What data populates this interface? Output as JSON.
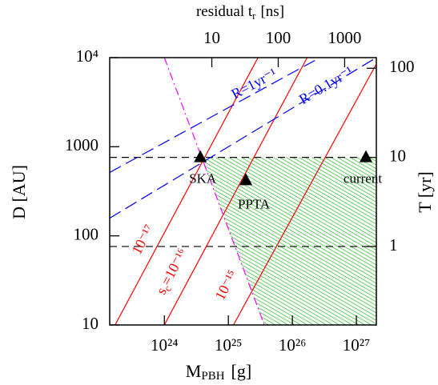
{
  "chart_data": {
    "type": "line",
    "xscale": "log",
    "yscale": "log",
    "xlabel": {
      "text": "M",
      "sub": "PBH",
      "unit": "[g]"
    },
    "ylabel": "D [AU]",
    "y2label": "T [yr]",
    "x2label": {
      "text": "residual t",
      "sub": "r",
      "unit": "[ns]"
    },
    "xlim": [
      1.4e+23,
      2.05e+27
    ],
    "xticks": [
      {
        "value": 1e+24,
        "label": "10²⁴"
      },
      {
        "value": 1e+25,
        "label": "10²⁵"
      },
      {
        "value": 1e+26,
        "label": "10²⁶"
      },
      {
        "value": 1e+27,
        "label": "10²⁷"
      }
    ],
    "ylim": [
      10,
      10000
    ],
    "yticks": [
      10,
      100,
      1000,
      {
        "value": 10000,
        "label": "10⁴"
      }
    ],
    "y2lim": [
      0.1316,
      131.6
    ],
    "y2ticks": [
      1,
      10,
      100
    ],
    "x2lim": [
      0.29,
      3000
    ],
    "x2ticks": [
      10,
      100,
      1000
    ],
    "series": [
      {
        "label": "10⁻¹⁷",
        "color": "#ff0000",
        "style": "solid",
        "x": [
          1.7e+23,
          2.9e+25
        ],
        "values": [
          10,
          10000
        ]
      },
      {
        "label": {
          "text": "s",
          "sub": "c",
          "tail": "=10⁻¹⁶"
        },
        "color": "#ff0000",
        "style": "solid",
        "x": [
          1e+24,
          1.7e+26
        ],
        "values": [
          10,
          10000
        ]
      },
      {
        "label": "10⁻¹⁵",
        "color": "#ff0000",
        "style": "solid",
        "x": [
          1.2e+25,
          2.05e+27
        ],
        "values": [
          10,
          8500
        ]
      },
      {
        "label": "R=1yr⁻¹",
        "color": "#0000ff",
        "style": "dashed",
        "x": [
          1.4e+23,
          2.7e+26
        ],
        "values": [
          515,
          10000
        ]
      },
      {
        "label": "R=0.1yr⁻¹",
        "color": "#0000ff",
        "style": "dashed",
        "x": [
          1.4e+23,
          2.05e+27
        ],
        "values": [
          158,
          10000
        ]
      },
      {
        "color": "#ff00ff",
        "style": "dashdot",
        "x": [
          1e+24,
          3.65e+25
        ],
        "values": [
          10000,
          10
        ]
      }
    ],
    "reference_lines": {
      "axis": "y2",
      "values": [
        10,
        1
      ],
      "color": "#000000"
    },
    "region": {
      "color": "#22bb22",
      "x": [
        3.76e+24,
        2.05e+27,
        2.05e+27,
        3.65e+25
      ],
      "y": [
        760,
        760,
        10,
        10
      ]
    },
    "points": {
      "marker": "triangle",
      "color": "#000000",
      "labels": [
        "SKA",
        "PPTA",
        "current"
      ],
      "x": [
        3.65e+24,
        1.88e+25,
        1.41e+27
      ],
      "y": [
        760,
        419,
        760
      ]
    }
  }
}
